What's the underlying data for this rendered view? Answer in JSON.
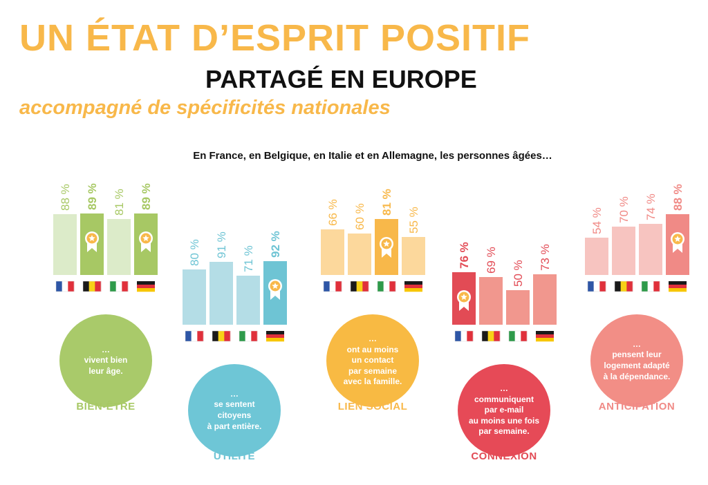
{
  "header": {
    "title_line1": "UN ÉTAT D’ESPRIT POSITIF",
    "title_line2": "PARTAGÉ EN EUROPE",
    "subtitle": "accompagné de spécificités nationales",
    "intro": "En France, en Belgique, en Italie et en Allemagne, les personnes âgées…"
  },
  "colors": {
    "title_orange": "#F8B84A",
    "text_dark": "#111111",
    "white": "#FFFFFF"
  },
  "countries": [
    "France",
    "Belgique",
    "Italie",
    "Allemagne"
  ],
  "chart_data": [
    {
      "type": "bar",
      "category": "BIEN-ÊTRE",
      "description": "…\nvivent bien\nleur âge.",
      "categories": [
        "France",
        "Belgique",
        "Italie",
        "Allemagne"
      ],
      "values": [
        88,
        89,
        81,
        89
      ],
      "labels": [
        "88 %",
        "89 %",
        "81 %",
        "89 %"
      ],
      "awards": [
        false,
        true,
        false,
        true
      ],
      "color_light": "#DCEBC9",
      "color_dark": "#A7C864",
      "color_circle": "#A9CA6A"
    },
    {
      "type": "bar",
      "category": "UTILITÉ",
      "description": "…\nse sentent\ncitoyens\nà part entière.",
      "categories": [
        "France",
        "Belgique",
        "Italie",
        "Allemagne"
      ],
      "values": [
        80,
        91,
        71,
        92
      ],
      "labels": [
        "80 %",
        "91 %",
        "71 %",
        "92 %"
      ],
      "awards": [
        false,
        false,
        false,
        true
      ],
      "color_light": "#B4DDE6",
      "color_dark": "#6EC4D4",
      "color_circle": "#6EC6D6"
    },
    {
      "type": "bar",
      "category": "LIEN SOCIAL",
      "description": "…\nont au moins\nun contact\npar semaine\navec la famille.",
      "categories": [
        "France",
        "Belgique",
        "Italie",
        "Allemagne"
      ],
      "values": [
        66,
        60,
        81,
        55
      ],
      "labels": [
        "66 %",
        "60 %",
        "81 %",
        "55 %"
      ],
      "awards": [
        false,
        false,
        true,
        false
      ],
      "color_light": "#FCD89C",
      "color_dark": "#F8B84A",
      "color_circle": "#F8BA43"
    },
    {
      "type": "bar",
      "category": "CONNEXION",
      "description": "…\ncommuniquent\npar e-mail\nau moins une fois\npar semaine.",
      "categories": [
        "France",
        "Belgique",
        "Italie",
        "Allemagne"
      ],
      "values": [
        76,
        69,
        50,
        73
      ],
      "labels": [
        "76 %",
        "69 %",
        "50 %",
        "73 %"
      ],
      "awards": [
        true,
        false,
        false,
        false
      ],
      "color_light": "#F1978E",
      "color_dark": "#E24B55",
      "color_circle": "#E64A57"
    },
    {
      "type": "bar",
      "category": "ANTICIPATION",
      "description": "…\npensent leur\nlogement adapté\nà la dépendance.",
      "categories": [
        "France",
        "Belgique",
        "Italie",
        "Allemagne"
      ],
      "values": [
        54,
        70,
        74,
        88
      ],
      "labels": [
        "54 %",
        "70 %",
        "74 %",
        "88 %"
      ],
      "awards": [
        false,
        false,
        false,
        true
      ],
      "color_light": "#F7C4C0",
      "color_dark": "#F08A86",
      "color_circle": "#F28E86"
    }
  ]
}
